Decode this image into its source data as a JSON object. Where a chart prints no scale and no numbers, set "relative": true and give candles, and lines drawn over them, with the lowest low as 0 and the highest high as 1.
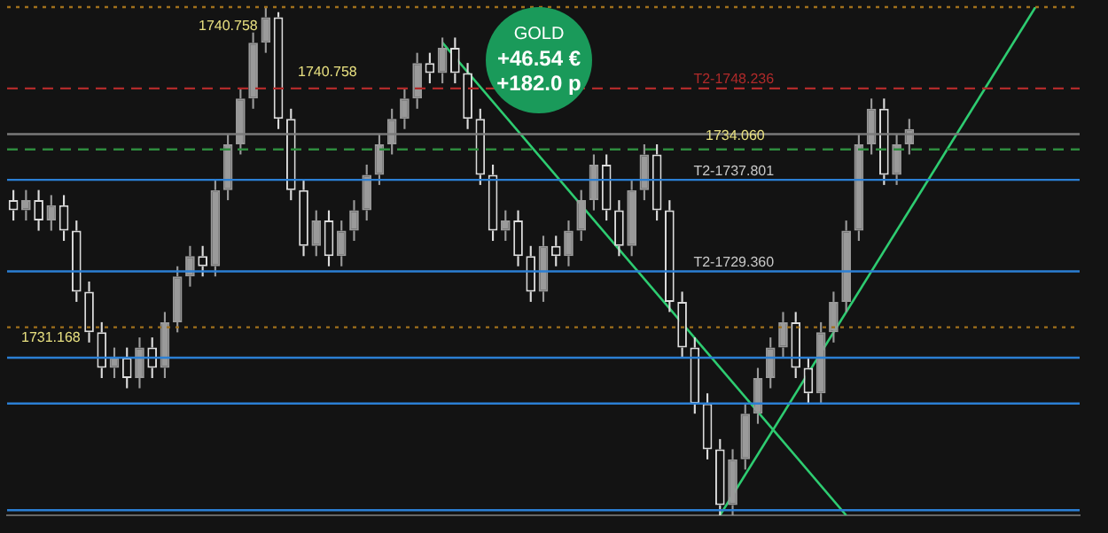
{
  "chart_data": {
    "type": "candlestick",
    "relative": true,
    "colors": [
      "#dcdcdc",
      "#9a9a9a",
      "#dcdcdc",
      "#9a9a9a",
      "#dcdcdc",
      "#dcdcdc",
      "#dcdcdc",
      "#dcdcdc",
      "#9a9a9a",
      "#dcdcdc",
      "#9a9a9a",
      "#dcdcdc",
      "#9a9a9a",
      "#9a9a9a",
      "#9a9a9a",
      "#dcdcdc",
      "#9a9a9a",
      "#9a9a9a",
      "#9a9a9a",
      "#9a9a9a",
      "#9a9a9a",
      "#dcdcdc",
      "#dcdcdc",
      "#dcdcdc",
      "#9a9a9a",
      "#dcdcdc",
      "#9a9a9a",
      "#9a9a9a",
      "#9a9a9a",
      "#9a9a9a",
      "#9a9a9a",
      "#9a9a9a",
      "#9a9a9a",
      "#dcdcdc",
      "#9a9a9a",
      "#dcdcdc",
      "#dcdcdc",
      "#dcdcdc",
      "#dcdcdc",
      "#9a9a9a",
      "#dcdcdc",
      "#dcdcdc",
      "#9a9a9a",
      "#dcdcdc",
      "#9a9a9a",
      "#9a9a9a",
      "#9a9a9a",
      "#dcdcdc",
      "#dcdcdc",
      "#9a9a9a",
      "#9a9a9a",
      "#dcdcdc",
      "#dcdcdc",
      "#dcdcdc",
      "#dcdcdc",
      "#dcdcdc",
      "#dcdcdc",
      "#9a9a9a",
      "#9a9a9a",
      "#9a9a9a",
      "#9a9a9a",
      "#9a9a9a",
      "#dcdcdc",
      "#dcdcdc",
      "#9a9a9a",
      "#9a9a9a",
      "#9a9a9a",
      "#9a9a9a",
      "#9a9a9a",
      "#dcdcdc",
      "#9a9a9a",
      "#9a9a9a",
      null,
      null,
      null,
      null,
      null,
      null,
      null,
      null,
      null,
      null,
      null,
      null,
      null
    ],
    "legend": false,
    "grid": false,
    "tick_labels": false,
    "categories": [
      null,
      null,
      null,
      null,
      null,
      null,
      null,
      null,
      null,
      null,
      null,
      null,
      null,
      null,
      null,
      null,
      null,
      null,
      null,
      null,
      null,
      null,
      null,
      null,
      null,
      null,
      null,
      null,
      null,
      null,
      null,
      null,
      null,
      null,
      null,
      null,
      null,
      null,
      null,
      null,
      null,
      null,
      null,
      null,
      null,
      null,
      null,
      null,
      null,
      null,
      null,
      null,
      null,
      null,
      null,
      null,
      null,
      null,
      null,
      null,
      null,
      null,
      null,
      null,
      null,
      null,
      null,
      null,
      null,
      null,
      null,
      null,
      null,
      null,
      null,
      null,
      null,
      null,
      null,
      null,
      null,
      null,
      null,
      null,
      null
    ],
    "ohlc": [
      [
        0.62,
        0.64,
        0.58,
        0.6
      ],
      [
        0.6,
        0.64,
        0.58,
        0.62
      ],
      [
        0.62,
        0.64,
        0.56,
        0.58
      ],
      [
        0.58,
        0.63,
        0.56,
        0.61
      ],
      [
        0.61,
        0.63,
        0.54,
        0.56
      ],
      [
        0.56,
        0.58,
        0.42,
        0.44
      ],
      [
        0.44,
        0.46,
        0.34,
        0.36
      ],
      [
        0.36,
        0.38,
        0.27,
        0.29
      ],
      [
        0.29,
        0.33,
        0.27,
        0.31
      ],
      [
        0.31,
        0.33,
        0.25,
        0.27
      ],
      [
        0.27,
        0.35,
        0.25,
        0.33
      ],
      [
        0.33,
        0.35,
        0.27,
        0.29
      ],
      [
        0.29,
        0.4,
        0.27,
        0.38
      ],
      [
        0.38,
        0.49,
        0.36,
        0.47
      ],
      [
        0.47,
        0.53,
        0.45,
        0.51
      ],
      [
        0.51,
        0.53,
        0.47,
        0.49
      ],
      [
        0.49,
        0.66,
        0.47,
        0.64
      ],
      [
        0.64,
        0.75,
        0.62,
        0.73
      ],
      [
        0.73,
        0.84,
        0.71,
        0.82
      ],
      [
        0.82,
        0.95,
        0.8,
        0.93
      ],
      [
        0.93,
        1.0,
        0.91,
        0.98
      ],
      [
        0.98,
        0.99,
        0.76,
        0.78
      ],
      [
        0.78,
        0.8,
        0.62,
        0.64
      ],
      [
        0.64,
        0.66,
        0.51,
        0.53
      ],
      [
        0.53,
        0.6,
        0.51,
        0.58
      ],
      [
        0.58,
        0.6,
        0.49,
        0.51
      ],
      [
        0.51,
        0.58,
        0.49,
        0.56
      ],
      [
        0.56,
        0.62,
        0.54,
        0.6
      ],
      [
        0.6,
        0.69,
        0.58,
        0.67
      ],
      [
        0.67,
        0.75,
        0.65,
        0.73
      ],
      [
        0.73,
        0.8,
        0.71,
        0.78
      ],
      [
        0.78,
        0.84,
        0.76,
        0.82
      ],
      [
        0.82,
        0.91,
        0.8,
        0.89
      ],
      [
        0.89,
        0.91,
        0.85,
        0.87
      ],
      [
        0.87,
        0.94,
        0.85,
        0.92
      ],
      [
        0.92,
        0.94,
        0.85,
        0.87
      ],
      [
        0.87,
        0.89,
        0.76,
        0.78
      ],
      [
        0.78,
        0.8,
        0.65,
        0.67
      ],
      [
        0.67,
        0.69,
        0.54,
        0.56
      ],
      [
        0.56,
        0.6,
        0.54,
        0.58
      ],
      [
        0.58,
        0.6,
        0.49,
        0.51
      ],
      [
        0.51,
        0.53,
        0.42,
        0.44
      ],
      [
        0.44,
        0.55,
        0.42,
        0.53
      ],
      [
        0.53,
        0.55,
        0.49,
        0.51
      ],
      [
        0.51,
        0.58,
        0.49,
        0.56
      ],
      [
        0.56,
        0.64,
        0.54,
        0.62
      ],
      [
        0.62,
        0.71,
        0.6,
        0.69
      ],
      [
        0.69,
        0.71,
        0.58,
        0.6
      ],
      [
        0.6,
        0.62,
        0.51,
        0.53
      ],
      [
        0.53,
        0.66,
        0.51,
        0.64
      ],
      [
        0.64,
        0.73,
        0.62,
        0.71
      ],
      [
        0.71,
        0.73,
        0.58,
        0.6
      ],
      [
        0.6,
        0.62,
        0.4,
        0.42
      ],
      [
        0.42,
        0.44,
        0.31,
        0.33
      ],
      [
        0.33,
        0.35,
        0.2,
        0.22
      ],
      [
        0.22,
        0.24,
        0.11,
        0.13
      ],
      [
        0.13,
        0.15,
        0.0,
        0.02
      ],
      [
        0.02,
        0.13,
        0.0,
        0.11
      ],
      [
        0.11,
        0.22,
        0.09,
        0.2
      ],
      [
        0.2,
        0.29,
        0.18,
        0.27
      ],
      [
        0.27,
        0.35,
        0.25,
        0.33
      ],
      [
        0.33,
        0.4,
        0.31,
        0.38
      ],
      [
        0.38,
        0.4,
        0.27,
        0.29
      ],
      [
        0.29,
        0.31,
        0.22,
        0.24
      ],
      [
        0.24,
        0.38,
        0.22,
        0.36
      ],
      [
        0.36,
        0.44,
        0.34,
        0.42
      ],
      [
        0.42,
        0.58,
        0.4,
        0.56
      ],
      [
        0.56,
        0.75,
        0.54,
        0.73
      ],
      [
        0.73,
        0.82,
        0.71,
        0.8
      ],
      [
        0.8,
        0.82,
        0.65,
        0.67
      ],
      [
        0.67,
        0.75,
        0.65,
        0.73
      ],
      [
        0.73,
        0.78,
        0.71,
        0.76
      ],
      null,
      null,
      null,
      null,
      null,
      null,
      null,
      null,
      null,
      null,
      null,
      null,
      null
    ],
    "series": [
      {
        "type": "line",
        "color": "#2ecc71",
        "values": [
          null,
          null,
          null,
          null,
          null,
          null,
          null,
          null,
          null,
          null,
          null,
          null,
          null,
          null,
          null,
          null,
          null,
          null,
          null,
          null,
          null,
          null,
          null,
          null,
          null,
          null,
          null,
          null,
          null,
          null,
          null,
          null,
          null,
          null,
          0.93,
          null,
          null,
          null,
          null,
          null,
          null,
          null,
          null,
          null,
          null,
          null,
          null,
          null,
          null,
          null,
          null,
          null,
          null,
          null,
          null,
          null,
          null,
          null,
          null,
          null,
          null,
          null,
          null,
          null,
          null,
          null,
          0.0,
          null,
          null,
          null,
          null,
          null,
          null,
          null,
          null,
          null,
          null,
          null,
          null,
          null,
          null,
          null,
          null,
          null,
          null
        ]
      },
      {
        "type": "line",
        "color": "#2ecc71",
        "values": [
          null,
          null,
          null,
          null,
          null,
          null,
          null,
          null,
          null,
          null,
          null,
          null,
          null,
          null,
          null,
          null,
          null,
          null,
          null,
          null,
          null,
          null,
          null,
          null,
          null,
          null,
          null,
          null,
          null,
          null,
          null,
          null,
          null,
          null,
          null,
          null,
          null,
          null,
          null,
          null,
          null,
          null,
          null,
          null,
          null,
          null,
          null,
          null,
          null,
          null,
          null,
          null,
          null,
          null,
          null,
          null,
          0.0,
          null,
          null,
          null,
          null,
          null,
          null,
          null,
          null,
          null,
          null,
          null,
          null,
          null,
          null,
          null,
          null,
          null,
          null,
          null,
          null,
          null,
          null,
          null,
          null,
          1.0,
          null,
          null,
          null
        ]
      }
    ],
    "marker": "none",
    "ref_lines": [
      {
        "axis": "y",
        "value": 1.0,
        "color": "#a0701c",
        "line_style": "dotted"
      },
      {
        "axis": "y",
        "value": 0.84,
        "label": "T2-1748.236",
        "color": "#b02a2a",
        "line_style": "dashed"
      },
      {
        "axis": "y",
        "value": 0.75,
        "color": "#7a7a7a",
        "line_style": "solid"
      },
      {
        "axis": "y",
        "value": 0.72,
        "color": "#2e8b3e",
        "line_style": "dashed"
      },
      {
        "axis": "y",
        "value": 0.66,
        "label": "T2-1737.801",
        "color": "#2b7fd4",
        "line_style": "solid"
      },
      {
        "axis": "y",
        "value": 0.48,
        "label": "T2-1729.360",
        "color": "#2b7fd4",
        "line_style": "solid"
      },
      {
        "axis": "y",
        "value": 0.37,
        "color": "#a0701c",
        "line_style": "dotted"
      },
      {
        "axis": "y",
        "value": 0.31,
        "color": "#2b7fd4",
        "line_style": "solid"
      },
      {
        "axis": "y",
        "value": 0.22,
        "color": "#2b7fd4",
        "line_style": "solid"
      },
      {
        "axis": "y",
        "value": 0.01,
        "color": "#2b7fd4",
        "line_style": "solid"
      }
    ],
    "annotations": [
      "GOLD",
      "+46.54 €",
      "+182.0 p",
      "1740.758",
      "1740.758",
      "1734.060",
      "1731.168"
    ]
  }
}
